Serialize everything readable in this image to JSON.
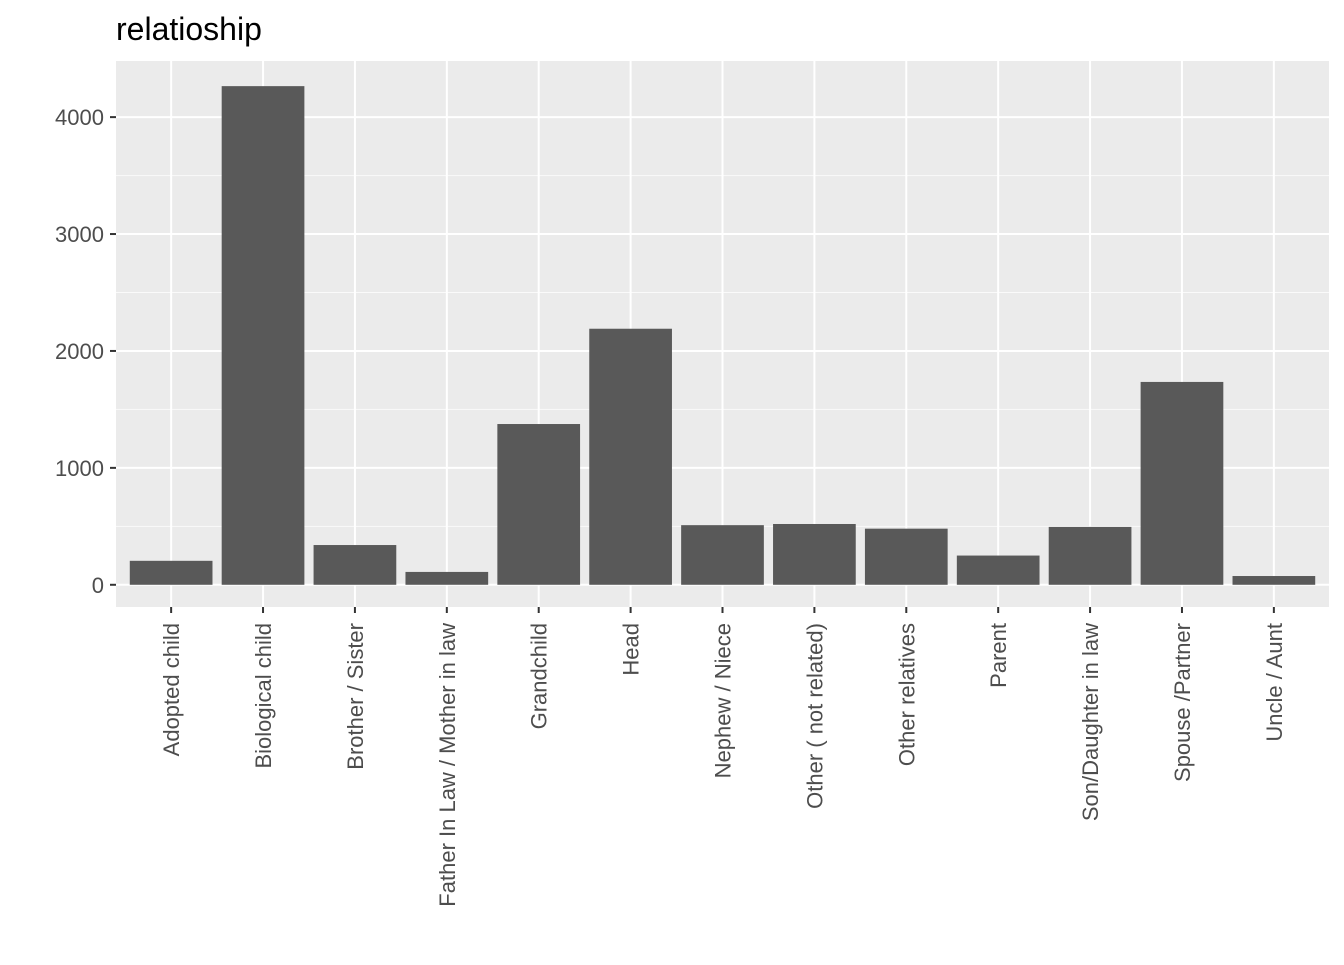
{
  "chart_data": {
    "type": "bar",
    "title": "relatioship",
    "xlabel": "",
    "ylabel": "",
    "categories": [
      "Adopted child",
      "Biological child",
      "Brother / Sister",
      "Father In Law / Mother in law",
      "Grandchild",
      "Head",
      "Nephew / Niece",
      "Other ( not related)",
      "Other relatives",
      "Parent",
      "Son/Daughter in law",
      "Spouse /Partner",
      "Uncle / Aunt"
    ],
    "values": [
      205,
      4265,
      340,
      110,
      1375,
      2190,
      510,
      520,
      480,
      250,
      495,
      1735,
      75
    ],
    "ylim": [
      -190,
      4480
    ],
    "yticks": [
      0,
      1000,
      2000,
      3000,
      4000
    ],
    "ytick_labels": [
      "0",
      "1000",
      "2000",
      "3000",
      "4000"
    ],
    "grid": true,
    "legend": "none",
    "colors": {
      "bar": "#595959",
      "panel": "#ebebeb",
      "grid_major": "#ffffff",
      "tick_text": "#4d4d4d",
      "tick_mark": "#333333"
    }
  }
}
